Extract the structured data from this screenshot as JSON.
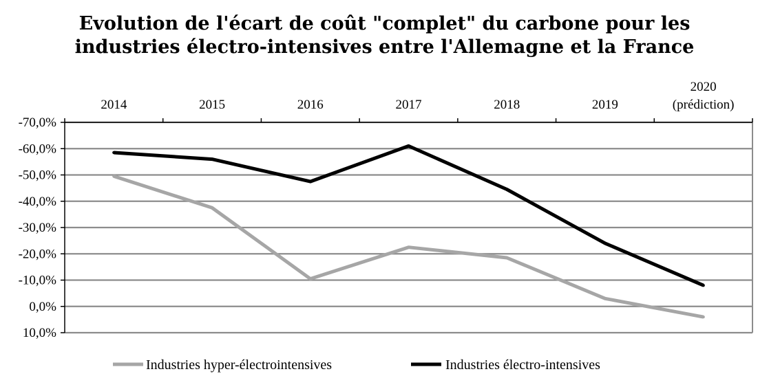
{
  "chart_data": {
    "type": "line",
    "title": [
      "Evolution de l'écart de coût \"complet\" du carbone pour les",
      "industries électro-intensives entre l'Allemagne et la France"
    ],
    "categories": [
      [
        "2014"
      ],
      [
        "2015"
      ],
      [
        "2016"
      ],
      [
        "2017"
      ],
      [
        "2018"
      ],
      [
        "2019"
      ],
      [
        "2020",
        "(prédiction)"
      ]
    ],
    "y_axis": {
      "reversed": true,
      "ticks": [
        {
          "value": -70,
          "label": "-70,0%"
        },
        {
          "value": -60,
          "label": "-60,0%"
        },
        {
          "value": -50,
          "label": "-50,0%"
        },
        {
          "value": -40,
          "label": "-40,0%"
        },
        {
          "value": -30,
          "label": "-30,0%"
        },
        {
          "value": -20,
          "label": "-20,0%"
        },
        {
          "value": -10,
          "label": "-10,0%"
        },
        {
          "value": 0,
          "label": "0,0%"
        },
        {
          "value": 10,
          "label": "10,0%"
        }
      ],
      "ylim": [
        -70,
        10
      ]
    },
    "grid": true,
    "legend_position": "bottom",
    "series": [
      {
        "name": "Industries hyper-électrointensives",
        "color": "#a6a6a6",
        "values": [
          -49.5,
          -37.5,
          -10.5,
          -22.5,
          -18.5,
          -3.0,
          4.0
        ]
      },
      {
        "name": "Industries électro-intensives",
        "color": "#000000",
        "values": [
          -58.5,
          -56.0,
          -47.5,
          -61.0,
          -44.5,
          -24.0,
          -8.0
        ]
      }
    ]
  }
}
